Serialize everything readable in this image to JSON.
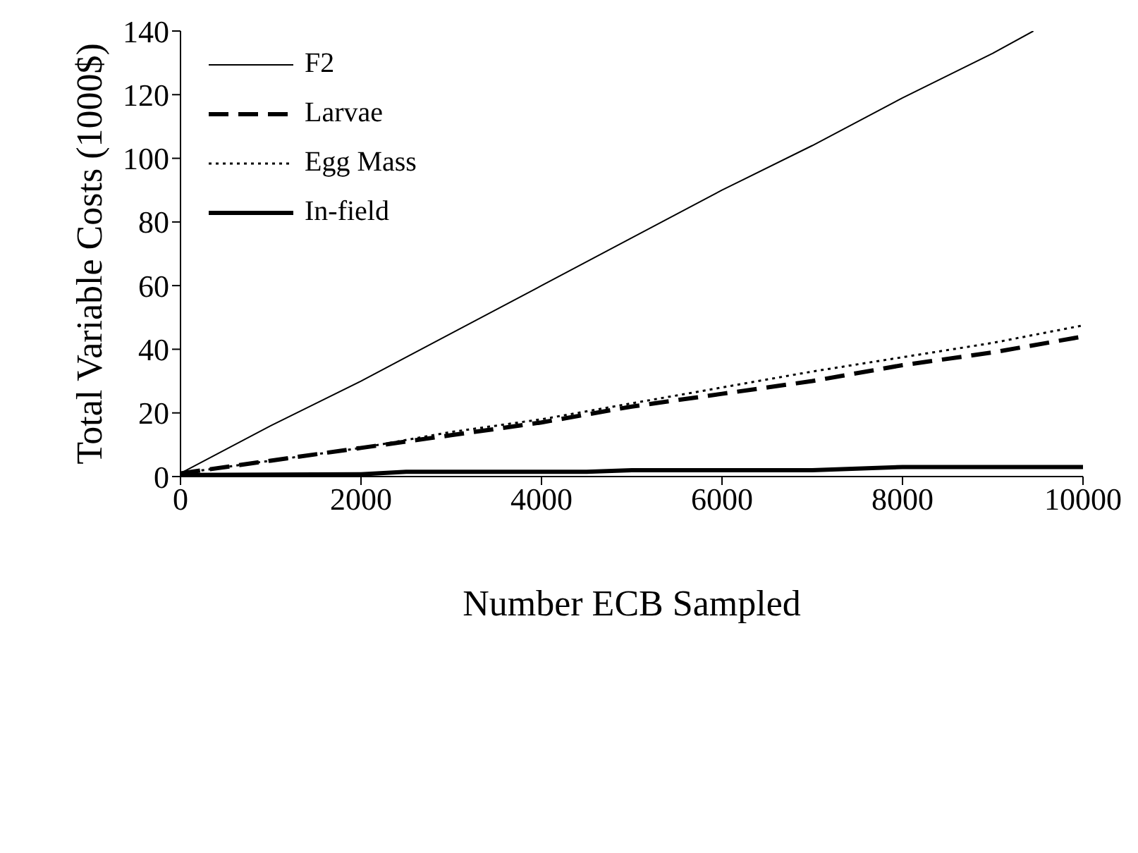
{
  "chart_data": {
    "type": "line",
    "xlabel": "Number ECB Sampled",
    "ylabel": "Total Variable Costs (1000$)",
    "xlim": [
      0,
      10000
    ],
    "xticks": [
      0,
      2000,
      4000,
      6000,
      8000,
      10000
    ],
    "ylim": [
      0,
      140
    ],
    "yticks": [
      0,
      20,
      40,
      60,
      80,
      100,
      120,
      140
    ],
    "grid": false,
    "legend": "top left",
    "marker": "none",
    "series": [
      {
        "name": "F2",
        "color": "#000000",
        "line_style": "solid",
        "x": [
          0,
          1000,
          2000,
          3000,
          4000,
          5000,
          6000,
          7000,
          8000,
          9000,
          9450
        ],
        "values": [
          1,
          16,
          30,
          45,
          60,
          75,
          90,
          104,
          119,
          133,
          140
        ]
      },
      {
        "name": "Larvae",
        "color": "#000000",
        "line_style": "dashed",
        "x": [
          0,
          1000,
          2000,
          3000,
          4000,
          5000,
          6000,
          7000,
          8000,
          9000,
          10000
        ],
        "values": [
          1,
          5,
          9,
          13,
          17,
          22,
          26,
          30,
          35,
          39,
          44
        ]
      },
      {
        "name": "Egg Mass",
        "color": "#000000",
        "line_style": "dotted",
        "x": [
          0,
          1000,
          2000,
          3000,
          4000,
          5000,
          6000,
          7000,
          8000,
          9000,
          10000
        ],
        "values": [
          1,
          5,
          9,
          14,
          18,
          23,
          28,
          33,
          37.5,
          42,
          47.5
        ]
      },
      {
        "name": "In-field",
        "color": "#000000",
        "line_style": "solid",
        "x": [
          0,
          2000,
          2500,
          4500,
          5000,
          7000,
          8000,
          10000
        ],
        "values": [
          0.5,
          0.7,
          1.5,
          1.5,
          2,
          2,
          3,
          3
        ]
      }
    ]
  }
}
